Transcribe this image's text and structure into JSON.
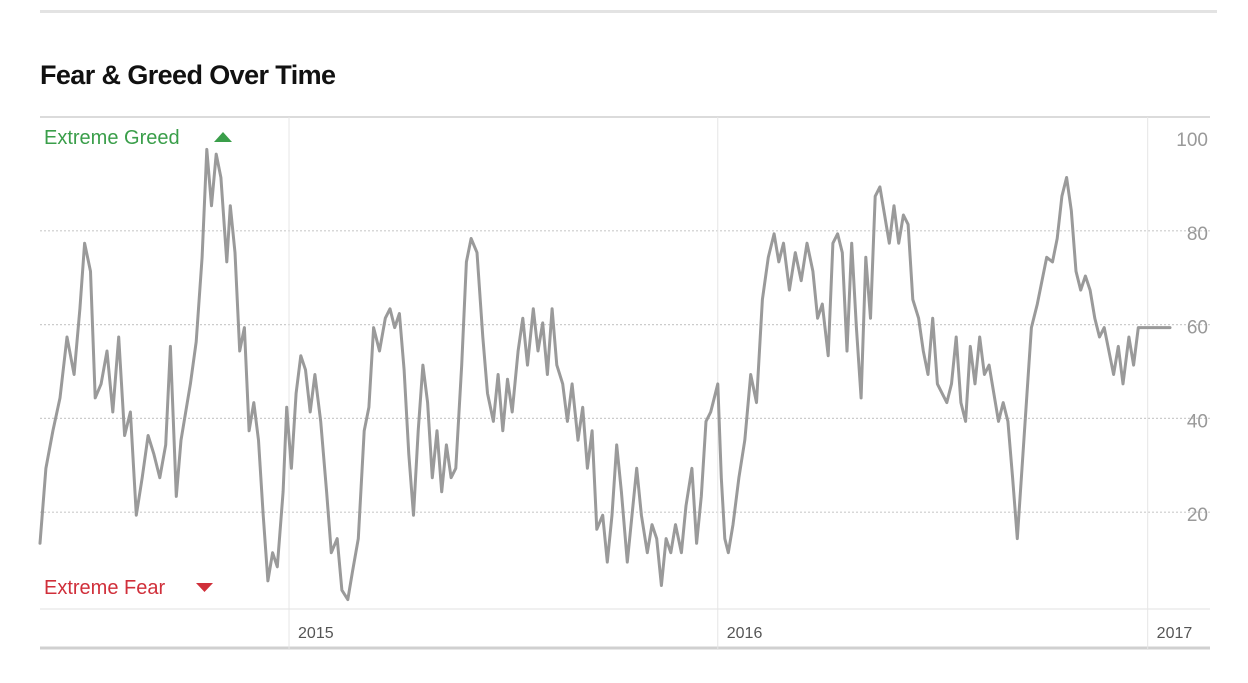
{
  "title": "Fear & Greed Over Time",
  "labels": {
    "extreme_greed": "Extreme Greed",
    "extreme_fear": "Extreme Fear"
  },
  "colors": {
    "line": "#9a9a9a",
    "greed": "#3a9e4a",
    "fear": "#d02f3a",
    "grid": "#cccccc",
    "tick": "#999999"
  },
  "chart_data": {
    "type": "line",
    "title": "Fear & Greed Over Time",
    "ylim": [
      0,
      100
    ],
    "y_ticks": [
      20,
      40,
      60,
      80,
      100
    ],
    "x_ticks": [
      {
        "label": "2015",
        "x": "2015-01-01"
      },
      {
        "label": "2016",
        "x": "2016-01-01"
      },
      {
        "label": "2017",
        "x": "2017-01-01"
      }
    ],
    "xlim": [
      "2014-06-03",
      "2017-01-20"
    ],
    "grid": true,
    "series": [
      {
        "values": [
          [
            "2014-06-03",
            14
          ],
          [
            "2014-06-08",
            30
          ],
          [
            "2014-06-14",
            38
          ],
          [
            "2014-06-20",
            45
          ],
          [
            "2014-06-26",
            58
          ],
          [
            "2014-07-02",
            50
          ],
          [
            "2014-07-07",
            64
          ],
          [
            "2014-07-11",
            78
          ],
          [
            "2014-07-16",
            72
          ],
          [
            "2014-07-20",
            45
          ],
          [
            "2014-07-25",
            48
          ],
          [
            "2014-07-30",
            55
          ],
          [
            "2014-08-04",
            42
          ],
          [
            "2014-08-09",
            58
          ],
          [
            "2014-08-14",
            37
          ],
          [
            "2014-08-19",
            42
          ],
          [
            "2014-08-24",
            20
          ],
          [
            "2014-08-29",
            28
          ],
          [
            "2014-09-03",
            37
          ],
          [
            "2014-09-08",
            33
          ],
          [
            "2014-09-13",
            28
          ],
          [
            "2014-09-18",
            35
          ],
          [
            "2014-09-22",
            56
          ],
          [
            "2014-09-27",
            24
          ],
          [
            "2014-10-01",
            36
          ],
          [
            "2014-10-05",
            42
          ],
          [
            "2014-10-09",
            48
          ],
          [
            "2014-10-14",
            57
          ],
          [
            "2014-10-19",
            75
          ],
          [
            "2014-10-23",
            98
          ],
          [
            "2014-10-27",
            86
          ],
          [
            "2014-10-31",
            97
          ],
          [
            "2014-11-04",
            92
          ],
          [
            "2014-11-09",
            74
          ],
          [
            "2014-11-12",
            86
          ],
          [
            "2014-11-16",
            76
          ],
          [
            "2014-11-20",
            55
          ],
          [
            "2014-11-24",
            60
          ],
          [
            "2014-11-28",
            38
          ],
          [
            "2014-12-02",
            44
          ],
          [
            "2014-12-06",
            36
          ],
          [
            "2014-12-10",
            20
          ],
          [
            "2014-12-14",
            6
          ],
          [
            "2014-12-18",
            12
          ],
          [
            "2014-12-22",
            9
          ],
          [
            "2014-12-27",
            25
          ],
          [
            "2014-12-30",
            43
          ],
          [
            "2015-01-03",
            30
          ],
          [
            "2015-01-07",
            46
          ],
          [
            "2015-01-11",
            54
          ],
          [
            "2015-01-15",
            51
          ],
          [
            "2015-01-19",
            42
          ],
          [
            "2015-01-23",
            50
          ],
          [
            "2015-01-28",
            40
          ],
          [
            "2015-02-02",
            25
          ],
          [
            "2015-02-06",
            12
          ],
          [
            "2015-02-11",
            15
          ],
          [
            "2015-02-15",
            4
          ],
          [
            "2015-02-20",
            2
          ],
          [
            "2015-02-24",
            8
          ],
          [
            "2015-03-01",
            15
          ],
          [
            "2015-03-06",
            38
          ],
          [
            "2015-03-10",
            43
          ],
          [
            "2015-03-14",
            60
          ],
          [
            "2015-03-19",
            55
          ],
          [
            "2015-03-24",
            62
          ],
          [
            "2015-03-28",
            64
          ],
          [
            "2015-04-01",
            60
          ],
          [
            "2015-04-05",
            63
          ],
          [
            "2015-04-09",
            51
          ],
          [
            "2015-04-13",
            33
          ],
          [
            "2015-04-17",
            20
          ],
          [
            "2015-04-21",
            38
          ],
          [
            "2015-04-25",
            52
          ],
          [
            "2015-04-29",
            44
          ],
          [
            "2015-05-03",
            28
          ],
          [
            "2015-05-07",
            38
          ],
          [
            "2015-05-11",
            25
          ],
          [
            "2015-05-15",
            35
          ],
          [
            "2015-05-19",
            28
          ],
          [
            "2015-05-23",
            30
          ],
          [
            "2015-05-28",
            52
          ],
          [
            "2015-06-01",
            74
          ],
          [
            "2015-06-05",
            79
          ],
          [
            "2015-06-10",
            76
          ],
          [
            "2015-06-15",
            58
          ],
          [
            "2015-06-19",
            46
          ],
          [
            "2015-06-24",
            40
          ],
          [
            "2015-06-28",
            50
          ],
          [
            "2015-07-02",
            38
          ],
          [
            "2015-07-06",
            49
          ],
          [
            "2015-07-10",
            42
          ],
          [
            "2015-07-15",
            55
          ],
          [
            "2015-07-19",
            62
          ],
          [
            "2015-07-23",
            52
          ],
          [
            "2015-07-28",
            64
          ],
          [
            "2015-08-01",
            55
          ],
          [
            "2015-08-05",
            61
          ],
          [
            "2015-08-09",
            50
          ],
          [
            "2015-08-13",
            64
          ],
          [
            "2015-08-17",
            52
          ],
          [
            "2015-08-22",
            48
          ],
          [
            "2015-08-26",
            40
          ],
          [
            "2015-08-30",
            48
          ],
          [
            "2015-09-04",
            36
          ],
          [
            "2015-09-08",
            43
          ],
          [
            "2015-09-12",
            30
          ],
          [
            "2015-09-16",
            38
          ],
          [
            "2015-09-20",
            17
          ],
          [
            "2015-09-25",
            20
          ],
          [
            "2015-09-29",
            10
          ],
          [
            "2015-10-03",
            20
          ],
          [
            "2015-10-07",
            35
          ],
          [
            "2015-10-11",
            25
          ],
          [
            "2015-10-16",
            10
          ],
          [
            "2015-10-20",
            20
          ],
          [
            "2015-10-24",
            30
          ],
          [
            "2015-10-28",
            20
          ],
          [
            "2015-11-02",
            12
          ],
          [
            "2015-11-06",
            18
          ],
          [
            "2015-11-10",
            15
          ],
          [
            "2015-11-14",
            5
          ],
          [
            "2015-11-18",
            15
          ],
          [
            "2015-11-22",
            12
          ],
          [
            "2015-11-26",
            18
          ],
          [
            "2015-12-01",
            12
          ],
          [
            "2015-12-05",
            22
          ],
          [
            "2015-12-10",
            30
          ],
          [
            "2015-12-14",
            14
          ],
          [
            "2015-12-18",
            24
          ],
          [
            "2015-12-22",
            40
          ],
          [
            "2015-12-26",
            42
          ],
          [
            "2016-01-01",
            48
          ],
          [
            "2016-01-04",
            28
          ],
          [
            "2016-01-07",
            15
          ],
          [
            "2016-01-10",
            12
          ],
          [
            "2016-01-14",
            18
          ],
          [
            "2016-01-19",
            28
          ],
          [
            "2016-01-24",
            36
          ],
          [
            "2016-01-29",
            50
          ],
          [
            "2016-02-03",
            44
          ],
          [
            "2016-02-08",
            66
          ],
          [
            "2016-02-13",
            75
          ],
          [
            "2016-02-18",
            80
          ],
          [
            "2016-02-22",
            74
          ],
          [
            "2016-02-26",
            78
          ],
          [
            "2016-03-02",
            68
          ],
          [
            "2016-03-07",
            76
          ],
          [
            "2016-03-12",
            70
          ],
          [
            "2016-03-17",
            78
          ],
          [
            "2016-03-22",
            72
          ],
          [
            "2016-03-26",
            62
          ],
          [
            "2016-03-30",
            65
          ],
          [
            "2016-04-04",
            54
          ],
          [
            "2016-04-08",
            78
          ],
          [
            "2016-04-12",
            80
          ],
          [
            "2016-04-16",
            76
          ],
          [
            "2016-04-20",
            55
          ],
          [
            "2016-04-24",
            78
          ],
          [
            "2016-04-28",
            60
          ],
          [
            "2016-05-02",
            45
          ],
          [
            "2016-05-06",
            75
          ],
          [
            "2016-05-10",
            62
          ],
          [
            "2016-05-14",
            88
          ],
          [
            "2016-05-18",
            90
          ],
          [
            "2016-05-22",
            84
          ],
          [
            "2016-05-26",
            78
          ],
          [
            "2016-05-30",
            86
          ],
          [
            "2016-06-03",
            78
          ],
          [
            "2016-06-07",
            84
          ],
          [
            "2016-06-11",
            82
          ],
          [
            "2016-06-15",
            66
          ],
          [
            "2016-06-20",
            62
          ],
          [
            "2016-06-24",
            55
          ],
          [
            "2016-06-28",
            50
          ],
          [
            "2016-07-02",
            62
          ],
          [
            "2016-07-06",
            48
          ],
          [
            "2016-07-10",
            46
          ],
          [
            "2016-07-14",
            44
          ],
          [
            "2016-07-18",
            48
          ],
          [
            "2016-07-22",
            58
          ],
          [
            "2016-07-26",
            44
          ],
          [
            "2016-07-30",
            40
          ],
          [
            "2016-08-03",
            56
          ],
          [
            "2016-08-07",
            48
          ],
          [
            "2016-08-11",
            58
          ],
          [
            "2016-08-15",
            50
          ],
          [
            "2016-08-19",
            52
          ],
          [
            "2016-08-23",
            46
          ],
          [
            "2016-08-27",
            40
          ],
          [
            "2016-08-31",
            44
          ],
          [
            "2016-09-04",
            40
          ],
          [
            "2016-09-08",
            28
          ],
          [
            "2016-09-12",
            15
          ],
          [
            "2016-09-16",
            30
          ],
          [
            "2016-09-20",
            45
          ],
          [
            "2016-09-24",
            60
          ],
          [
            "2016-09-29",
            65
          ],
          [
            "2016-10-03",
            70
          ],
          [
            "2016-10-07",
            75
          ],
          [
            "2016-10-12",
            74
          ],
          [
            "2016-10-16",
            79
          ],
          [
            "2016-10-20",
            88
          ],
          [
            "2016-10-24",
            92
          ],
          [
            "2016-10-28",
            85
          ],
          [
            "2016-11-01",
            72
          ],
          [
            "2016-11-05",
            68
          ],
          [
            "2016-11-09",
            71
          ],
          [
            "2016-11-13",
            68
          ],
          [
            "2016-11-17",
            62
          ],
          [
            "2016-11-21",
            58
          ],
          [
            "2016-11-25",
            60
          ],
          [
            "2016-11-29",
            55
          ],
          [
            "2016-12-03",
            50
          ],
          [
            "2016-12-07",
            56
          ],
          [
            "2016-12-11",
            48
          ],
          [
            "2016-12-16",
            58
          ],
          [
            "2016-12-20",
            52
          ],
          [
            "2016-12-24",
            60
          ],
          [
            "2017-01-20",
            60
          ]
        ]
      }
    ]
  }
}
